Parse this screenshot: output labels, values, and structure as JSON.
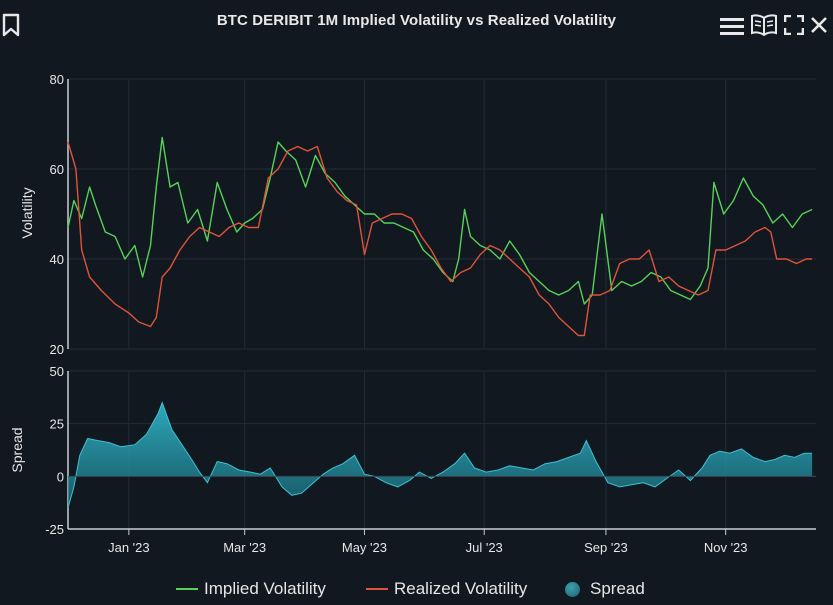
{
  "header": {
    "title": "BTC DERIBIT 1M Implied Volatility vs Realized Volatility",
    "icons": [
      "bookmark-icon",
      "menu-icon",
      "book-icon",
      "fullscreen-icon",
      "close-icon"
    ]
  },
  "colors": {
    "background": "#111820",
    "implied": "#58d158",
    "realized": "#e0533a",
    "spread": "#2a9db0",
    "grid": "#232c36"
  },
  "chart_data": [
    {
      "type": "line",
      "title": "BTC DERIBIT 1M Implied Volatility vs Realized Volatility",
      "ylabel": "Volatility",
      "ylim": [
        20,
        80
      ],
      "yticks": [
        20,
        40,
        60,
        80
      ],
      "x_start": "2022-12-01",
      "x_end": "2023-12-17",
      "grid": true,
      "series": [
        {
          "name": "Implied Volatility",
          "color": "#58d158",
          "points": [
            [
              "2022-12-01",
              47
            ],
            [
              "2022-12-04",
              53
            ],
            [
              "2022-12-08",
              49
            ],
            [
              "2022-12-12",
              56
            ],
            [
              "2022-12-15",
              52
            ],
            [
              "2022-12-20",
              46
            ],
            [
              "2022-12-25",
              45
            ],
            [
              "2022-12-30",
              40
            ],
            [
              "2023-01-04",
              43
            ],
            [
              "2023-01-08",
              36
            ],
            [
              "2023-01-12",
              43
            ],
            [
              "2023-01-15",
              56
            ],
            [
              "2023-01-18",
              67
            ],
            [
              "2023-01-22",
              56
            ],
            [
              "2023-01-26",
              57
            ],
            [
              "2023-01-31",
              48
            ],
            [
              "2023-02-05",
              51
            ],
            [
              "2023-02-10",
              44
            ],
            [
              "2023-02-15",
              57
            ],
            [
              "2023-02-20",
              51
            ],
            [
              "2023-02-25",
              46
            ],
            [
              "2023-03-01",
              48
            ],
            [
              "2023-03-05",
              49
            ],
            [
              "2023-03-10",
              51
            ],
            [
              "2023-03-14",
              58
            ],
            [
              "2023-03-18",
              66
            ],
            [
              "2023-03-22",
              64
            ],
            [
              "2023-03-27",
              62
            ],
            [
              "2023-04-01",
              56
            ],
            [
              "2023-04-06",
              63
            ],
            [
              "2023-04-11",
              59
            ],
            [
              "2023-04-16",
              57
            ],
            [
              "2023-04-21",
              54
            ],
            [
              "2023-04-26",
              52
            ],
            [
              "2023-05-01",
              50
            ],
            [
              "2023-05-06",
              50
            ],
            [
              "2023-05-11",
              48
            ],
            [
              "2023-05-16",
              48
            ],
            [
              "2023-05-21",
              47
            ],
            [
              "2023-05-26",
              46
            ],
            [
              "2023-05-31",
              42
            ],
            [
              "2023-06-05",
              40
            ],
            [
              "2023-06-10",
              37
            ],
            [
              "2023-06-15",
              35
            ],
            [
              "2023-06-18",
              40
            ],
            [
              "2023-06-21",
              51
            ],
            [
              "2023-06-24",
              45
            ],
            [
              "2023-06-29",
              43
            ],
            [
              "2023-07-04",
              42
            ],
            [
              "2023-07-09",
              40
            ],
            [
              "2023-07-14",
              44
            ],
            [
              "2023-07-19",
              41
            ],
            [
              "2023-07-24",
              37
            ],
            [
              "2023-07-29",
              35
            ],
            [
              "2023-08-03",
              33
            ],
            [
              "2023-08-08",
              32
            ],
            [
              "2023-08-13",
              33
            ],
            [
              "2023-08-18",
              35
            ],
            [
              "2023-08-21",
              30
            ],
            [
              "2023-08-25",
              32
            ],
            [
              "2023-08-30",
              50
            ],
            [
              "2023-09-04",
              33
            ],
            [
              "2023-09-09",
              35
            ],
            [
              "2023-09-14",
              34
            ],
            [
              "2023-09-19",
              35
            ],
            [
              "2023-09-24",
              37
            ],
            [
              "2023-09-29",
              36
            ],
            [
              "2023-10-04",
              33
            ],
            [
              "2023-10-09",
              32
            ],
            [
              "2023-10-14",
              31
            ],
            [
              "2023-10-19",
              34
            ],
            [
              "2023-10-23",
              38
            ],
            [
              "2023-10-26",
              57
            ],
            [
              "2023-10-31",
              50
            ],
            [
              "2023-11-05",
              53
            ],
            [
              "2023-11-10",
              58
            ],
            [
              "2023-11-15",
              54
            ],
            [
              "2023-11-20",
              52
            ],
            [
              "2023-11-25",
              48
            ],
            [
              "2023-11-30",
              50
            ],
            [
              "2023-12-05",
              47
            ],
            [
              "2023-12-10",
              50
            ],
            [
              "2023-12-15",
              51
            ]
          ]
        },
        {
          "name": "Realized Volatility",
          "color": "#e0533a",
          "points": [
            [
              "2022-12-01",
              66
            ],
            [
              "2022-12-05",
              60
            ],
            [
              "2022-12-08",
              42
            ],
            [
              "2022-12-12",
              36
            ],
            [
              "2022-12-18",
              33
            ],
            [
              "2022-12-25",
              30
            ],
            [
              "2023-01-01",
              28
            ],
            [
              "2023-01-06",
              26
            ],
            [
              "2023-01-12",
              25
            ],
            [
              "2023-01-15",
              27
            ],
            [
              "2023-01-18",
              36
            ],
            [
              "2023-01-22",
              38
            ],
            [
              "2023-01-27",
              42
            ],
            [
              "2023-02-01",
              45
            ],
            [
              "2023-02-06",
              47
            ],
            [
              "2023-02-11",
              46
            ],
            [
              "2023-02-16",
              45
            ],
            [
              "2023-02-21",
              47
            ],
            [
              "2023-02-26",
              48
            ],
            [
              "2023-03-03",
              47
            ],
            [
              "2023-03-08",
              47
            ],
            [
              "2023-03-13",
              58
            ],
            [
              "2023-03-18",
              60
            ],
            [
              "2023-03-23",
              64
            ],
            [
              "2023-03-28",
              65
            ],
            [
              "2023-04-02",
              64
            ],
            [
              "2023-04-07",
              65
            ],
            [
              "2023-04-12",
              58
            ],
            [
              "2023-04-17",
              55
            ],
            [
              "2023-04-22",
              53
            ],
            [
              "2023-04-27",
              52
            ],
            [
              "2023-05-01",
              41
            ],
            [
              "2023-05-05",
              48
            ],
            [
              "2023-05-10",
              49
            ],
            [
              "2023-05-15",
              50
            ],
            [
              "2023-05-20",
              50
            ],
            [
              "2023-05-25",
              49
            ],
            [
              "2023-05-30",
              45
            ],
            [
              "2023-06-04",
              42
            ],
            [
              "2023-06-09",
              38
            ],
            [
              "2023-06-14",
              35
            ],
            [
              "2023-06-19",
              37
            ],
            [
              "2023-06-24",
              38
            ],
            [
              "2023-06-29",
              41
            ],
            [
              "2023-07-04",
              43
            ],
            [
              "2023-07-09",
              42
            ],
            [
              "2023-07-14",
              40
            ],
            [
              "2023-07-19",
              38
            ],
            [
              "2023-07-24",
              36
            ],
            [
              "2023-07-29",
              32
            ],
            [
              "2023-08-03",
              30
            ],
            [
              "2023-08-08",
              27
            ],
            [
              "2023-08-13",
              25
            ],
            [
              "2023-08-18",
              23
            ],
            [
              "2023-08-21",
              23
            ],
            [
              "2023-08-24",
              32
            ],
            [
              "2023-08-29",
              32
            ],
            [
              "2023-09-03",
              33
            ],
            [
              "2023-09-08",
              39
            ],
            [
              "2023-09-13",
              40
            ],
            [
              "2023-09-18",
              40
            ],
            [
              "2023-09-23",
              42
            ],
            [
              "2023-09-28",
              35
            ],
            [
              "2023-10-03",
              36
            ],
            [
              "2023-10-08",
              34
            ],
            [
              "2023-10-13",
              33
            ],
            [
              "2023-10-18",
              32
            ],
            [
              "2023-10-23",
              33
            ],
            [
              "2023-10-27",
              42
            ],
            [
              "2023-11-01",
              42
            ],
            [
              "2023-11-06",
              43
            ],
            [
              "2023-11-11",
              44
            ],
            [
              "2023-11-16",
              46
            ],
            [
              "2023-11-21",
              47
            ],
            [
              "2023-11-24",
              46
            ],
            [
              "2023-11-27",
              40
            ],
            [
              "2023-12-02",
              40
            ],
            [
              "2023-12-07",
              39
            ],
            [
              "2023-12-12",
              40
            ],
            [
              "2023-12-15",
              40
            ]
          ]
        }
      ]
    },
    {
      "type": "area",
      "ylabel": "Spread",
      "ylim": [
        -25,
        50
      ],
      "yticks": [
        -25,
        0,
        25,
        50
      ],
      "grid": true,
      "series": [
        {
          "name": "Spread",
          "color": "#2a9db0",
          "points": [
            [
              "2022-12-01",
              -15
            ],
            [
              "2022-12-04",
              -5
            ],
            [
              "2022-12-07",
              10
            ],
            [
              "2022-12-11",
              18
            ],
            [
              "2022-12-16",
              17
            ],
            [
              "2022-12-22",
              16
            ],
            [
              "2022-12-28",
              14
            ],
            [
              "2023-01-04",
              15
            ],
            [
              "2023-01-10",
              20
            ],
            [
              "2023-01-16",
              30
            ],
            [
              "2023-01-18",
              35
            ],
            [
              "2023-01-23",
              22
            ],
            [
              "2023-01-28",
              15
            ],
            [
              "2023-02-02",
              8
            ],
            [
              "2023-02-06",
              2
            ],
            [
              "2023-02-10",
              -3
            ],
            [
              "2023-02-15",
              7
            ],
            [
              "2023-02-20",
              6
            ],
            [
              "2023-02-26",
              3
            ],
            [
              "2023-03-04",
              2
            ],
            [
              "2023-03-09",
              1
            ],
            [
              "2023-03-14",
              4
            ],
            [
              "2023-03-20",
              -5
            ],
            [
              "2023-03-25",
              -9
            ],
            [
              "2023-03-30",
              -8
            ],
            [
              "2023-04-05",
              -3
            ],
            [
              "2023-04-10",
              1
            ],
            [
              "2023-04-15",
              4
            ],
            [
              "2023-04-20",
              6
            ],
            [
              "2023-04-26",
              10
            ],
            [
              "2023-05-01",
              1
            ],
            [
              "2023-05-06",
              0
            ],
            [
              "2023-05-12",
              -3
            ],
            [
              "2023-05-18",
              -5
            ],
            [
              "2023-05-24",
              -2
            ],
            [
              "2023-05-29",
              2
            ],
            [
              "2023-06-04",
              -1
            ],
            [
              "2023-06-10",
              2
            ],
            [
              "2023-06-16",
              6
            ],
            [
              "2023-06-21",
              11
            ],
            [
              "2023-06-26",
              4
            ],
            [
              "2023-07-02",
              2
            ],
            [
              "2023-07-08",
              3
            ],
            [
              "2023-07-14",
              5
            ],
            [
              "2023-07-20",
              4
            ],
            [
              "2023-07-26",
              3
            ],
            [
              "2023-08-01",
              6
            ],
            [
              "2023-08-07",
              7
            ],
            [
              "2023-08-13",
              9
            ],
            [
              "2023-08-19",
              11
            ],
            [
              "2023-08-22",
              17
            ],
            [
              "2023-08-27",
              7
            ],
            [
              "2023-09-02",
              -3
            ],
            [
              "2023-09-08",
              -5
            ],
            [
              "2023-09-14",
              -4
            ],
            [
              "2023-09-20",
              -3
            ],
            [
              "2023-09-26",
              -5
            ],
            [
              "2023-10-02",
              -1
            ],
            [
              "2023-10-08",
              3
            ],
            [
              "2023-10-14",
              -2
            ],
            [
              "2023-10-20",
              4
            ],
            [
              "2023-10-24",
              10
            ],
            [
              "2023-10-29",
              12
            ],
            [
              "2023-11-03",
              11
            ],
            [
              "2023-11-09",
              13
            ],
            [
              "2023-11-15",
              9
            ],
            [
              "2023-11-21",
              7
            ],
            [
              "2023-11-26",
              8
            ],
            [
              "2023-12-01",
              10
            ],
            [
              "2023-12-06",
              9
            ],
            [
              "2023-12-11",
              11
            ],
            [
              "2023-12-15",
              11
            ]
          ]
        }
      ]
    }
  ],
  "xaxis": {
    "ticks": [
      {
        "date": "2023-01-01",
        "label": "Jan '23"
      },
      {
        "date": "2023-03-01",
        "label": "Mar '23"
      },
      {
        "date": "2023-05-01",
        "label": "May '23"
      },
      {
        "date": "2023-07-01",
        "label": "Jul '23"
      },
      {
        "date": "2023-09-01",
        "label": "Sep '23"
      },
      {
        "date": "2023-11-01",
        "label": "Nov '23"
      }
    ]
  },
  "legend": {
    "position": "bottom-center",
    "items": [
      {
        "label": "Implied Volatility",
        "kind": "line",
        "color": "#58d158"
      },
      {
        "label": "Realized Volatility",
        "kind": "line",
        "color": "#e0533a"
      },
      {
        "label": "Spread",
        "kind": "area",
        "color": "#2a9db0"
      }
    ]
  }
}
